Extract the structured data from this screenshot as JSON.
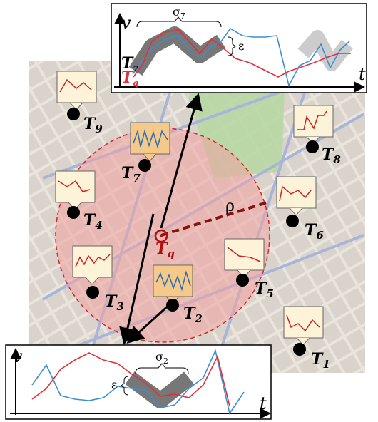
{
  "top_inset": {
    "y_label": "v",
    "x_label": "t",
    "sigma": {
      "symbol": "σ",
      "sub": "7"
    },
    "epsilon": "ε",
    "series_labels": [
      {
        "name": "T",
        "sub": "7"
      },
      {
        "name": "T",
        "sub": "q"
      }
    ]
  },
  "bottom_inset": {
    "y_label": "v",
    "x_label": "t",
    "sigma": {
      "symbol": "σ",
      "sub": "2"
    },
    "epsilon": "ε"
  },
  "map": {
    "radius_label": "ρ",
    "query": {
      "name": "T",
      "sub": "q"
    },
    "nodes": [
      {
        "name": "T",
        "sub": "9"
      },
      {
        "name": "T",
        "sub": "7"
      },
      {
        "name": "T",
        "sub": "8"
      },
      {
        "name": "T",
        "sub": "4"
      },
      {
        "name": "T",
        "sub": "6"
      },
      {
        "name": "T",
        "sub": "3"
      },
      {
        "name": "T",
        "sub": "5"
      },
      {
        "name": "T",
        "sub": "2"
      },
      {
        "name": "T",
        "sub": "1"
      }
    ]
  }
}
